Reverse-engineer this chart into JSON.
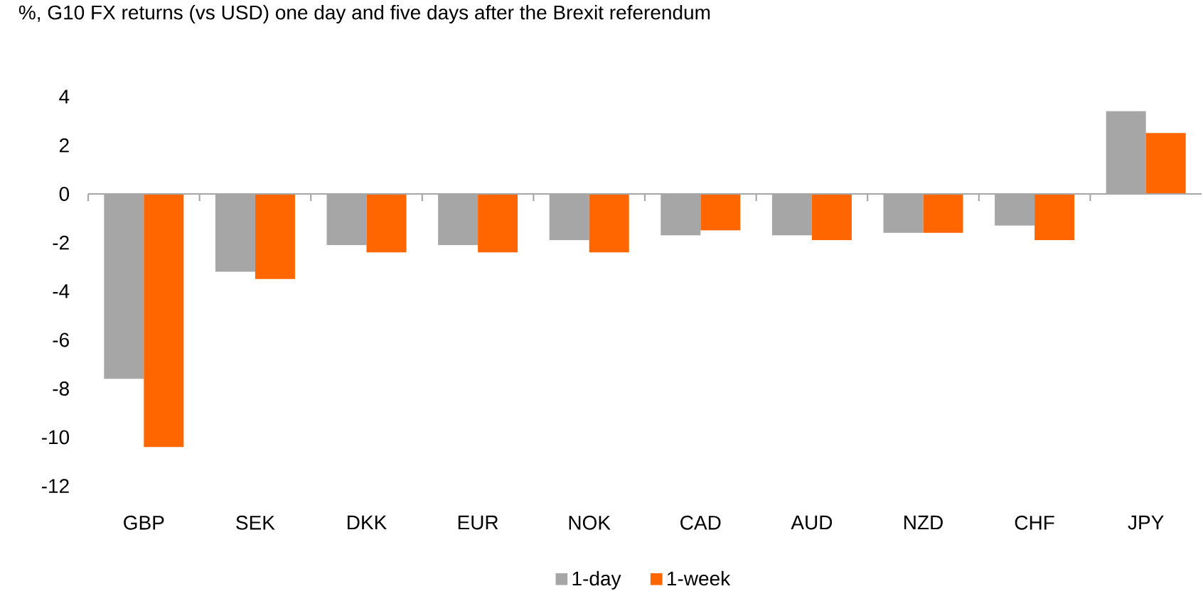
{
  "chart_data": {
    "type": "bar",
    "title": "%, G10 FX returns (vs USD) one day and five days after the Brexit referendum",
    "categories": [
      "GBP",
      "SEK",
      "DKK",
      "EUR",
      "NOK",
      "CAD",
      "AUD",
      "NZD",
      "CHF",
      "JPY"
    ],
    "series": [
      {
        "name": "1-day",
        "color": "#a6a6a6",
        "values": [
          -7.6,
          -3.2,
          -2.1,
          -2.1,
          -1.9,
          -1.7,
          -1.7,
          -1.6,
          -1.3,
          3.4
        ]
      },
      {
        "name": "1-week",
        "color": "#ff6600",
        "values": [
          -10.4,
          -3.5,
          -2.4,
          -2.4,
          -2.4,
          -1.5,
          -1.9,
          -1.6,
          -1.9,
          2.5
        ]
      }
    ],
    "ylim": [
      -12,
      4
    ],
    "yticks": [
      -12,
      -10,
      -8,
      -6,
      -4,
      -2,
      0,
      2,
      4
    ],
    "ref_lines": [
      {
        "axis": "y",
        "value": 0,
        "color": "#a6a6a6"
      }
    ],
    "legend": "bottom"
  }
}
